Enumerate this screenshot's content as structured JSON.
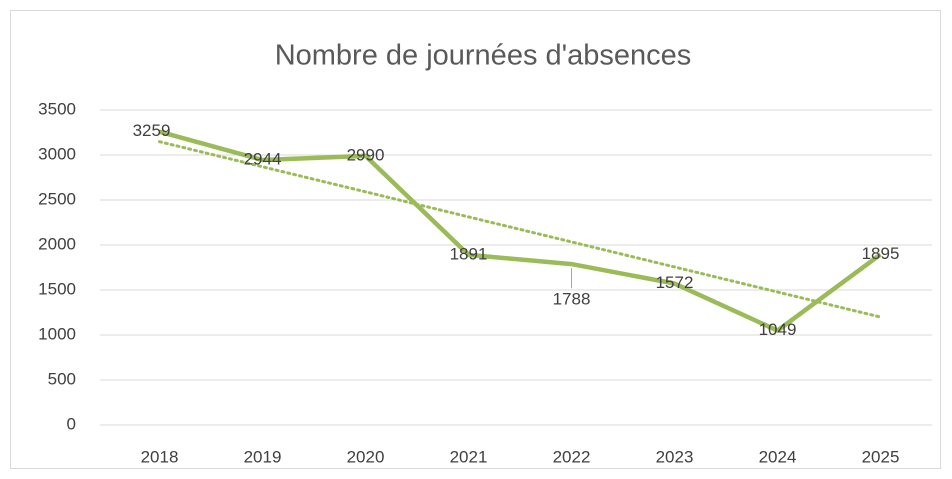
{
  "chart_data": {
    "type": "line",
    "title": "Nombre de journées d'absences",
    "categories": [
      "2018",
      "2019",
      "2020",
      "2021",
      "2022",
      "2023",
      "2024",
      "2025"
    ],
    "series": [
      {
        "color": "#9bbb59",
        "values": [
          3259,
          2944,
          2990,
          1891,
          1788,
          1572,
          1049,
          1895
        ]
      }
    ],
    "trendline": {
      "type": "linear",
      "color": "#9bbb59"
    },
    "ylim": [
      0,
      3500
    ],
    "yticks": [
      0,
      500,
      1000,
      1500,
      2000,
      2500,
      3000,
      3500
    ],
    "grid": true
  }
}
